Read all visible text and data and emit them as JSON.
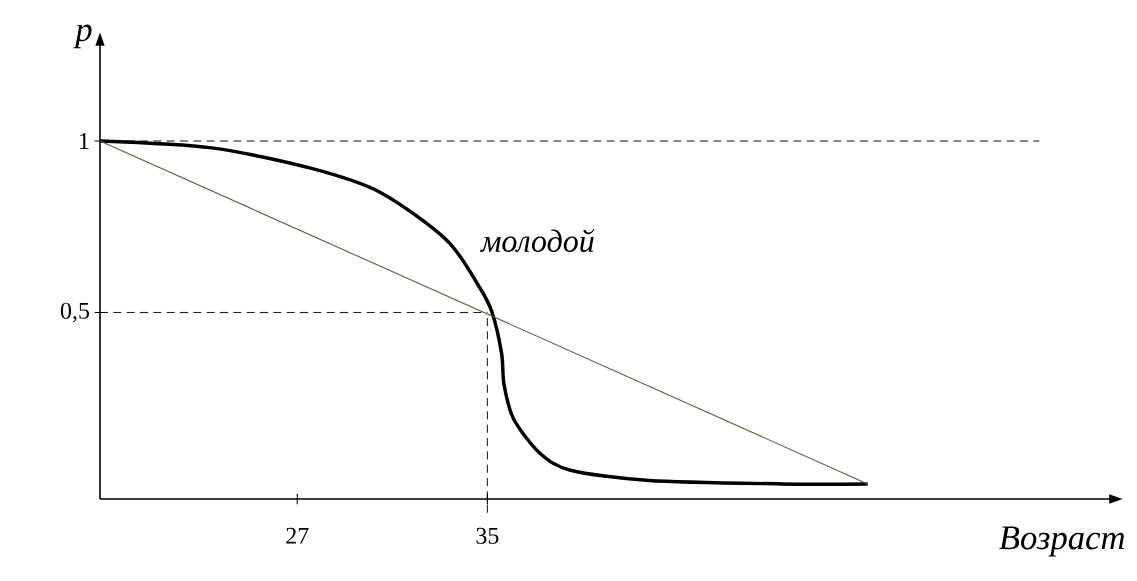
{
  "chart_data": {
    "type": "line",
    "xlabel": "Возраст",
    "ylabel": "p",
    "xlim": [
      18.7,
      61.2
    ],
    "ylim": [
      -0.044,
      1.28
    ],
    "xticks": [
      27,
      35
    ],
    "yticks": [
      1,
      {
        "value": 0.5,
        "label": "0,5"
      }
    ],
    "grid": false,
    "marker": "none",
    "line_style": "solid",
    "ref_lines": [
      {
        "axis": "y",
        "value": 1,
        "color": "#000000",
        "line_style": "dashed"
      },
      {
        "axis": "y",
        "value": 0.5,
        "color": "#000000",
        "line_style": "dashed"
      },
      {
        "axis": "x",
        "value": 35,
        "color": "#000000",
        "line_style": "dashed"
      }
    ],
    "series": [
      {
        "name": "молодой",
        "color": "#000000",
        "x": [
          18.7,
          23.4,
          27.6,
          30.5,
          33.3,
          34.7,
          35.2,
          35.6,
          35.7,
          36.1,
          37.2,
          38.5,
          41.8,
          47.4,
          51.0
        ],
        "values": [
          1.0,
          0.98,
          0.92,
          0.85,
          0.71,
          0.57,
          0.5,
          0.38,
          0.29,
          0.19,
          0.09,
          0.04,
          0.01,
          0,
          0
        ]
      },
      {
        "color": "#5a5a3c",
        "x": [
          18.7,
          51.0
        ],
        "values": [
          1,
          0
        ]
      }
    ]
  }
}
